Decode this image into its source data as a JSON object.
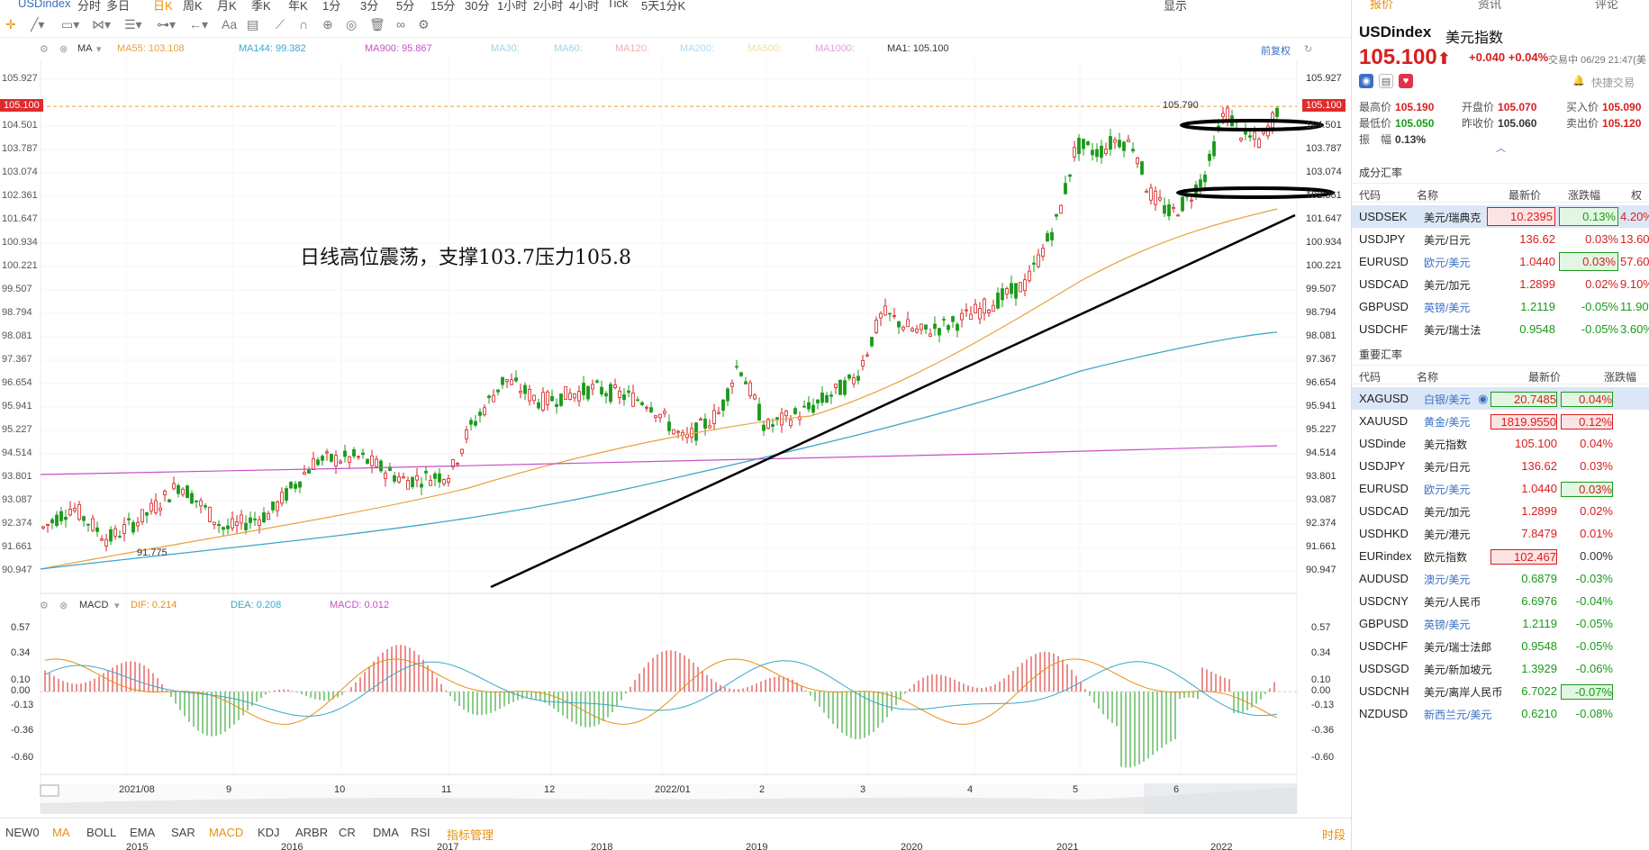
{
  "topbar": {
    "symbol": "USDindex",
    "intervals": [
      "分时",
      "多日",
      "日K",
      "周K",
      "月K",
      "季K",
      "年K",
      "1分",
      "3分",
      "5分",
      "15分",
      "30分",
      "1小时",
      "2小时",
      "4小时",
      "Tick",
      "5天1分K"
    ],
    "active_interval": "日K",
    "right_label": "显示"
  },
  "toolbar": {
    "text_tool": "Aa"
  },
  "ma_legend": {
    "ma": "MA",
    "ma55": "MA55: 103.108",
    "ma144": "MA144: 99.382",
    "ma900": "MA900: 95.867",
    "ma30": "MA30:",
    "ma60": "MA60:",
    "ma120": "MA120:",
    "ma200": "MA200:",
    "ma500": "MA500:",
    "ma1000": "MA1000:",
    "ma1": "MA1: 105.100",
    "adjust": "前复权"
  },
  "macd_legend": {
    "name": "MACD",
    "dif": "DIF: 0.214",
    "dea": "DEA: 0.208",
    "macd": "MACD: 0.012"
  },
  "price_axis": [
    "105.927",
    "104.501",
    "103.787",
    "103.074",
    "102.361",
    "101.647",
    "100.934",
    "100.221",
    "99.507",
    "98.794",
    "98.081",
    "97.367",
    "96.654",
    "95.941",
    "95.227",
    "94.514",
    "93.801",
    "93.087",
    "92.374",
    "91.661",
    "90.947"
  ],
  "current_price_tag": "105.100",
  "high_label": "105.790",
  "low_label": "91.775",
  "macd_axis": [
    "0.57",
    "0.34",
    "0.10",
    "0.00",
    "-0.13",
    "-0.36",
    "-0.60"
  ],
  "x_axis": [
    "2021/08",
    "9",
    "10",
    "11",
    "12",
    "2022/01",
    "2",
    "3",
    "4",
    "5",
    "6"
  ],
  "overview_axis": [
    "2015",
    "2016",
    "2017",
    "2018",
    "2019",
    "2020",
    "2021",
    "2022"
  ],
  "annotation": "日线高位震荡，支撑103.7压力105.8",
  "indicators": [
    "NEW0",
    "MA",
    "BOLL",
    "EMA",
    "SAR",
    "MACD",
    "KDJ",
    "ARBR",
    "CR",
    "DMA",
    "RSI",
    "指标管理"
  ],
  "active_indicators": [
    "MA",
    "MACD"
  ],
  "indicator_right": "时段",
  "colors": {
    "up": "#d81e1e",
    "down": "#1a9a1a",
    "ma55": "#e8a23c",
    "ma144": "#3aa7c9",
    "ma900": "#c651c6",
    "accent": "#e8900c",
    "dif": "#e8900c",
    "dea": "#3aa7c9"
  },
  "right_panel": {
    "tabs": [
      "报价",
      "资讯",
      "评论"
    ],
    "symbol": "USDindex",
    "name": "美元指数",
    "price": "105.100",
    "change": "+0.040",
    "change_pct": "+0.04%",
    "time": "交易中 06/29 21:47(美",
    "quick_trade": "快捷交易",
    "quote": [
      {
        "k": "最高价",
        "v": "105.190",
        "c": "up"
      },
      {
        "k": "开盘价",
        "v": "105.070",
        "c": "up"
      },
      {
        "k": "买入价",
        "v": "105.090",
        "c": "up"
      },
      {
        "k": "最低价",
        "v": "105.050",
        "c": "down"
      },
      {
        "k": "昨收价",
        "v": "105.060",
        "c": "flat"
      },
      {
        "k": "卖出价",
        "v": "105.120",
        "c": "up"
      },
      {
        "k": "振　幅",
        "v": "0.13%",
        "c": "flat"
      }
    ],
    "components_title": "成分汇率",
    "components_head": [
      "代码",
      "名称",
      "最新价",
      "涨跌幅",
      "权"
    ],
    "components": [
      {
        "code": "USDSEK",
        "name": "美元/瑞典克",
        "price": "10.2395",
        "pct": "0.13%",
        "weight": "4.20%",
        "c": "up",
        "sel": true
      },
      {
        "code": "USDJPY",
        "name": "美元/日元",
        "price": "136.62",
        "pct": "0.03%",
        "weight": "13.60%",
        "c": "up",
        "sel": false
      },
      {
        "code": "EURUSD",
        "name": "欧元/美元",
        "price": "1.0440",
        "pct": "0.03%",
        "weight": "57.60%",
        "c": "up",
        "sel": false
      },
      {
        "code": "USDCAD",
        "name": "美元/加元",
        "price": "1.2899",
        "pct": "0.02%",
        "weight": "9.10%",
        "c": "up",
        "sel": false
      },
      {
        "code": "GBPUSD",
        "name": "英镑/美元",
        "price": "1.2119",
        "pct": "-0.05%",
        "weight": "11.90%",
        "c": "down",
        "sel": false
      },
      {
        "code": "USDCHF",
        "name": "美元/瑞士法",
        "price": "0.9548",
        "pct": "-0.05%",
        "weight": "3.60%",
        "c": "down",
        "sel": false
      }
    ],
    "major_title": "重要汇率",
    "major_head": [
      "代码",
      "名称",
      "最新价",
      "涨跌幅"
    ],
    "major": [
      {
        "code": "XAGUSD",
        "name": "白银/美元",
        "price": "20.7485",
        "pct": "0.04%",
        "c": "up",
        "sel": true
      },
      {
        "code": "XAUUSD",
        "name": "黄金/美元",
        "price": "1819.9550",
        "pct": "0.12%",
        "c": "up",
        "sel": false
      },
      {
        "code": "USDinde",
        "name": "美元指数",
        "price": "105.100",
        "pct": "0.04%",
        "c": "up",
        "sel": false
      },
      {
        "code": "USDJPY",
        "name": "美元/日元",
        "price": "136.62",
        "pct": "0.03%",
        "c": "up",
        "sel": false
      },
      {
        "code": "EURUSD",
        "name": "欧元/美元",
        "price": "1.0440",
        "pct": "0.03%",
        "c": "up",
        "sel": false
      },
      {
        "code": "USDCAD",
        "name": "美元/加元",
        "price": "1.2899",
        "pct": "0.02%",
        "c": "up",
        "sel": false
      },
      {
        "code": "USDHKD",
        "name": "美元/港元",
        "price": "7.8479",
        "pct": "0.01%",
        "c": "up",
        "sel": false
      },
      {
        "code": "EURindex",
        "name": "欧元指数",
        "price": "102.467",
        "pct": "0.00%",
        "c": "flat",
        "sel": false
      },
      {
        "code": "AUDUSD",
        "name": "澳元/美元",
        "price": "0.6879",
        "pct": "-0.03%",
        "c": "down",
        "sel": false
      },
      {
        "code": "USDCNY",
        "name": "美元/人民币",
        "price": "6.6976",
        "pct": "-0.04%",
        "c": "down",
        "sel": false
      },
      {
        "code": "GBPUSD",
        "name": "英镑/美元",
        "price": "1.2119",
        "pct": "-0.05%",
        "c": "down",
        "sel": false
      },
      {
        "code": "USDCHF",
        "name": "美元/瑞士法郎",
        "price": "0.9548",
        "pct": "-0.05%",
        "c": "down",
        "sel": false
      },
      {
        "code": "USDSGD",
        "name": "美元/新加坡元",
        "price": "1.3929",
        "pct": "-0.06%",
        "c": "down",
        "sel": false
      },
      {
        "code": "USDCNH",
        "name": "美元/离岸人民币",
        "price": "6.7022",
        "pct": "-0.07%",
        "c": "down",
        "sel": false
      },
      {
        "code": "NZDUSD",
        "name": "新西兰元/美元",
        "price": "0.6210",
        "pct": "-0.08%",
        "c": "down",
        "sel": false
      }
    ]
  }
}
